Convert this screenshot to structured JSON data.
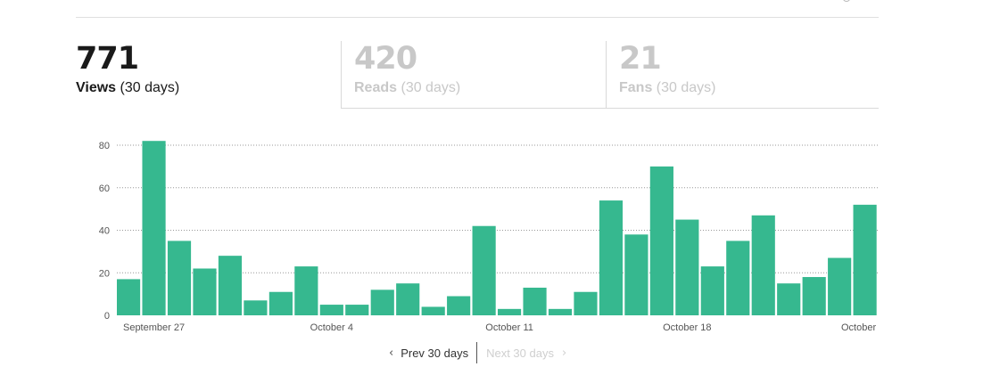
{
  "stats": [
    {
      "value": "771",
      "label": "Views",
      "period": "(30 days)",
      "active": true
    },
    {
      "value": "420",
      "label": "Reads",
      "period": "(30 days)",
      "active": false
    },
    {
      "value": "21",
      "label": "Fans",
      "period": "(30 days)",
      "active": false
    }
  ],
  "pager": {
    "prev_label": "Prev 30 days",
    "next_label": "Next 30 days"
  },
  "colors": {
    "bar": "#36b88f",
    "grid": "#999999",
    "text_axis": "#555555",
    "inactive_text": "#c8c8c8"
  },
  "chart_data": {
    "type": "bar",
    "title": "",
    "xlabel": "",
    "ylabel": "",
    "ylim": [
      0,
      80
    ],
    "yticks": [
      0,
      20,
      40,
      60,
      80
    ],
    "grid": true,
    "x_tick_labels": [
      "September 27",
      "October 4",
      "October 11",
      "October 18",
      "October"
    ],
    "x_tick_indices": [
      1,
      8,
      15,
      22,
      29
    ],
    "values": [
      17,
      82,
      35,
      22,
      28,
      7,
      11,
      23,
      5,
      5,
      12,
      15,
      4,
      9,
      42,
      3,
      13,
      3,
      11,
      54,
      38,
      70,
      45,
      23,
      35,
      47,
      15,
      18,
      27,
      52
    ]
  }
}
